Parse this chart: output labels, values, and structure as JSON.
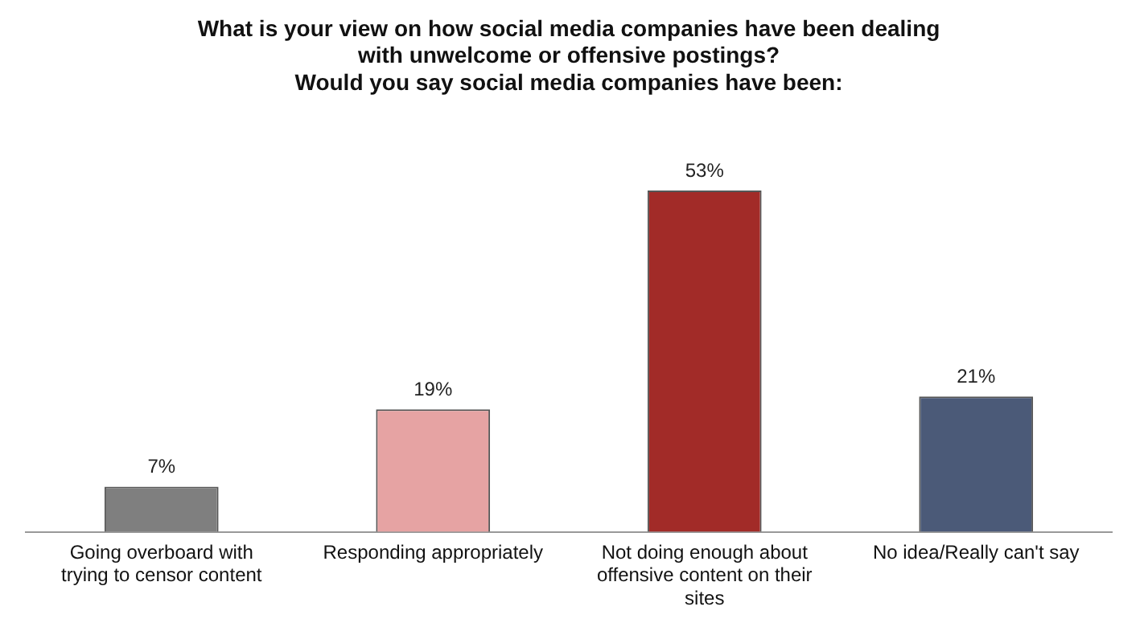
{
  "chart_data": {
    "type": "bar",
    "title": "What is your view on how social media companies have been dealing with unwelcome or offensive postings?",
    "subtitle": "Would you say social media companies have been:",
    "categories": [
      "Going overboard with trying to censor content",
      "Responding appropriately",
      "Not doing enough about offensive content on their sites",
      "No idea/Really can't say"
    ],
    "values": [
      7,
      19,
      53,
      21
    ],
    "colors": [
      "#7f7f7f",
      "#e6a3a3",
      "#a22b28",
      "#4b5a78"
    ],
    "value_labels": [
      "7%",
      "19%",
      "53%",
      "21%"
    ],
    "grid": false,
    "legend": false
  }
}
